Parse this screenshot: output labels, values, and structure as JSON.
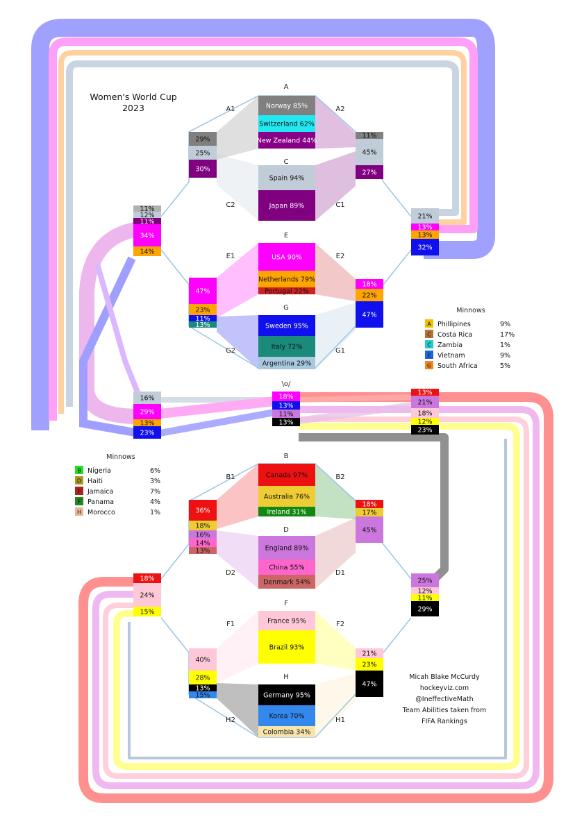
{
  "title": [
    "Women's World Cup",
    "2023"
  ],
  "center_label": "\\o/",
  "groups": [
    {
      "name": "A",
      "teams": [
        {
          "label": "Norway 85%",
          "color": "#808080",
          "text": "light"
        },
        {
          "label": "Switzerland 62%",
          "color": "#22e8f2",
          "text": "dark"
        },
        {
          "label": "New Zealand 44%",
          "color": "#880088",
          "text": "light"
        }
      ]
    },
    {
      "name": "C",
      "teams": [
        {
          "label": "Spain 94%",
          "color": "#c0ccd8",
          "text": "dark"
        },
        {
          "label": "Japan 89%",
          "color": "#800080",
          "text": "light"
        }
      ]
    },
    {
      "name": "E",
      "teams": [
        {
          "label": "USA 90%",
          "color": "#ff00ff",
          "text": "light"
        },
        {
          "label": "Netherlands 79%",
          "color": "#ffa500",
          "text": "dark"
        },
        {
          "label": "Portugal 22%",
          "color": "#cc2222",
          "text": "dark"
        }
      ]
    },
    {
      "name": "G",
      "teams": [
        {
          "label": "Sweden 95%",
          "color": "#1010ee",
          "text": "light"
        },
        {
          "label": "Italy 72%",
          "color": "#1a8a7a",
          "text": "dark"
        },
        {
          "label": "Argentina 29%",
          "color": "#a8c8e0",
          "text": "dark"
        }
      ]
    },
    {
      "name": "B",
      "teams": [
        {
          "label": "Canada 97%",
          "color": "#ee1111",
          "text": "dark"
        },
        {
          "label": "Australia 76%",
          "color": "#eecc33",
          "text": "dark"
        },
        {
          "label": "Ireland 31%",
          "color": "#118811",
          "text": "light"
        }
      ]
    },
    {
      "name": "D",
      "teams": [
        {
          "label": "England 89%",
          "color": "#cc77dd",
          "text": "dark"
        },
        {
          "label": "China 55%",
          "color": "#ff66cc",
          "text": "dark"
        },
        {
          "label": "Denmark 54%",
          "color": "#cc6666",
          "text": "dark"
        }
      ]
    },
    {
      "name": "F",
      "teams": [
        {
          "label": "France 95%",
          "color": "#ffc8d8",
          "text": "dark"
        },
        {
          "label": "Brazil 93%",
          "color": "#ffff00",
          "text": "dark"
        }
      ]
    },
    {
      "name": "H",
      "teams": [
        {
          "label": "Germany 95%",
          "color": "#000000",
          "text": "light"
        },
        {
          "label": "Korea 70%",
          "color": "#3388ee",
          "text": "dark"
        },
        {
          "label": "Colombia 34%",
          "color": "#f8e4a8",
          "text": "dark"
        }
      ]
    }
  ],
  "slot_labels": [
    "A1",
    "A2",
    "C2",
    "C1",
    "E1",
    "E2",
    "G2",
    "G1",
    "B1",
    "B2",
    "D2",
    "D1",
    "F1",
    "F2",
    "H2",
    "H1"
  ],
  "stacks": {
    "A1": [
      {
        "v": "29%",
        "c": "#808080"
      },
      {
        "v": "25%",
        "c": "#c0ccd8"
      },
      {
        "v": "30%",
        "c": "#800080"
      }
    ],
    "A2": [
      {
        "v": "11%",
        "c": "#808080"
      },
      {
        "v": "45%",
        "c": "#c0ccd8"
      },
      {
        "v": "27%",
        "c": "#800080"
      }
    ],
    "E1": [
      {
        "v": "47%",
        "c": "#ff00ff"
      },
      {
        "v": "23%",
        "c": "#ffa500"
      },
      {
        "v": "11%",
        "c": "#1010ee"
      },
      {
        "v": "13%",
        "c": "#1a8a7a"
      }
    ],
    "E2": [
      {
        "v": "18%",
        "c": "#ff00ff"
      },
      {
        "v": "22%",
        "c": "#ffa500"
      },
      {
        "v": "47%",
        "c": "#1010ee"
      }
    ],
    "QL": [
      {
        "v": "11%",
        "c": "#b0b0b0"
      },
      {
        "v": "12%",
        "c": "#c0ccd8"
      },
      {
        "v": "11%",
        "c": "#800080"
      },
      {
        "v": "34%",
        "c": "#ff00ff"
      },
      {
        "v": "14%",
        "c": "#ffa500"
      }
    ],
    "QR": [
      {
        "v": "21%",
        "c": "#c0ccd8"
      },
      {
        "v": "13%",
        "c": "#ff00ff"
      },
      {
        "v": "13%",
        "c": "#ffa500"
      },
      {
        "v": "32%",
        "c": "#1010ee"
      }
    ],
    "SL": [
      {
        "v": "16%",
        "c": "#c0ccd8"
      },
      {
        "v": "29%",
        "c": "#ff00ff"
      },
      {
        "v": "13%",
        "c": "#ffa500"
      },
      {
        "v": "23%",
        "c": "#1010ee"
      }
    ],
    "CE": [
      {
        "v": "18%",
        "c": "#ff00ff"
      },
      {
        "v": "13%",
        "c": "#1010ee"
      },
      {
        "v": "11%",
        "c": "#cc77dd"
      },
      {
        "v": "13%",
        "c": "#000000"
      }
    ],
    "SR": [
      {
        "v": "13%",
        "c": "#ee1111"
      },
      {
        "v": "21%",
        "c": "#cc77dd"
      },
      {
        "v": "18%",
        "c": "#ffc8d8"
      },
      {
        "v": "12%",
        "c": "#ffff00"
      },
      {
        "v": "23%",
        "c": "#000000"
      }
    ],
    "B1": [
      {
        "v": "36%",
        "c": "#ee1111"
      },
      {
        "v": "18%",
        "c": "#eecc33"
      },
      {
        "v": "16%",
        "c": "#cc77dd"
      },
      {
        "v": "14%",
        "c": "#ff66cc"
      },
      {
        "v": "13%",
        "c": "#cc6666"
      }
    ],
    "B2": [
      {
        "v": "18%",
        "c": "#ee1111"
      },
      {
        "v": "17%",
        "c": "#eecc33"
      },
      {
        "v": "45%",
        "c": "#cc77dd"
      }
    ],
    "QL2": [
      {
        "v": "18%",
        "c": "#ee1111"
      },
      {
        "v": "24%",
        "c": "#ffc8d8"
      },
      {
        "v": "15%",
        "c": "#ffff00"
      }
    ],
    "QR2": [
      {
        "v": "25%",
        "c": "#cc77dd"
      },
      {
        "v": "12%",
        "c": "#ffc8d8"
      },
      {
        "v": "11%",
        "c": "#ffff00"
      },
      {
        "v": "29%",
        "c": "#000000"
      }
    ],
    "F1": [
      {
        "v": "40%",
        "c": "#ffc8d8"
      },
      {
        "v": "28%",
        "c": "#ffff00"
      },
      {
        "v": "13%",
        "c": "#000000"
      },
      {
        "v": "15%",
        "c": "#3388ee"
      }
    ],
    "F2": [
      {
        "v": "21%",
        "c": "#ffc8d8"
      },
      {
        "v": "23%",
        "c": "#ffff00"
      },
      {
        "v": "47%",
        "c": "#000000"
      }
    ]
  },
  "legend_top": {
    "title": "Minnows",
    "items": [
      {
        "key": "A",
        "name": "Phillipines",
        "value": "9%",
        "color": "#f2c200"
      },
      {
        "key": "C",
        "name": "Costa Rica",
        "value": "17%",
        "color": "#b87333"
      },
      {
        "key": "C",
        "name": "Zambia",
        "value": "1%",
        "color": "#22cccc"
      },
      {
        "key": "E",
        "name": "Vietnam",
        "value": "9%",
        "color": "#1e66dd"
      },
      {
        "key": "G",
        "name": "South Africa",
        "value": "5%",
        "color": "#ee8822"
      }
    ]
  },
  "legend_bottom": {
    "title": "Minnows",
    "items": [
      {
        "key": "B",
        "name": "Nigeria",
        "value": "6%",
        "color": "#22dd22"
      },
      {
        "key": "D",
        "name": "Haiti",
        "value": "3%",
        "color": "#aa9922"
      },
      {
        "key": "F",
        "name": "Jamaica",
        "value": "7%",
        "color": "#aa2222"
      },
      {
        "key": "F",
        "name": "Panama",
        "value": "4%",
        "color": "#228822"
      },
      {
        "key": "H",
        "name": "Morocco",
        "value": "1%",
        "color": "#e8b898"
      }
    ]
  },
  "credits": [
    "Micah Blake McCurdy",
    "hockeyviz.com",
    "@IneffectiveMath",
    "Team Abilities taken from",
    "FIFA Rankings"
  ]
}
